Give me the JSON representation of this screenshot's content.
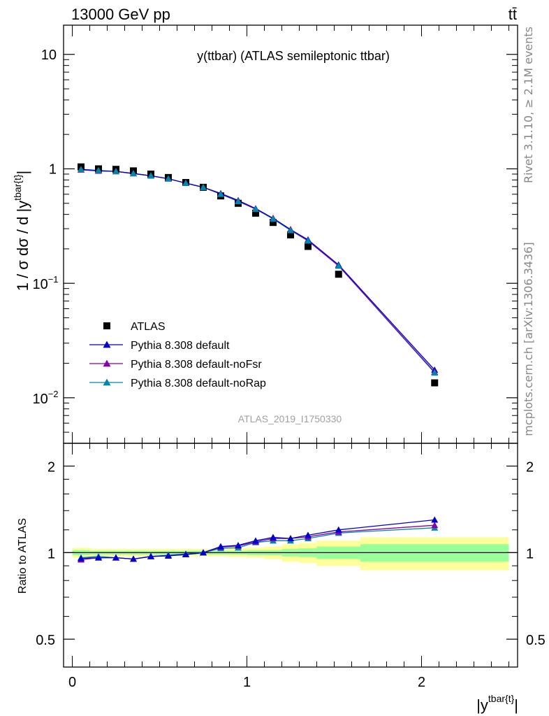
{
  "header": {
    "left": "13000 GeV pp",
    "right": "tt̄"
  },
  "side_labels": {
    "rivet": "Rivet 3.1.10, ≥ 2.1M events",
    "mcplots": "mcplots.cern.ch [arXiv:1306.3436]"
  },
  "watermark": "ATLAS_2019_I1750330",
  "colors": {
    "atlas": "#000000",
    "default": "#0000cc",
    "noFsr": "#8800aa",
    "noRap": "#0088aa",
    "band_inner": "#99ff99",
    "band_outer": "#ffff99"
  },
  "chart_data": [
    {
      "type": "scatter",
      "title": "y(ttbar) (ATLAS semileptonic ttbar)",
      "ylabel": "1 / σ dσ / d |y^{tbar{t}}|",
      "yscale": "log",
      "ylim": [
        0.004,
        18
      ],
      "xlim": [
        -0.05,
        2.55
      ],
      "ytick_labels": [
        "10^{-2}",
        "10^{-1}",
        "1",
        "10"
      ],
      "legend_position": "lower-left",
      "x": [
        0.05,
        0.15,
        0.25,
        0.35,
        0.45,
        0.55,
        0.65,
        0.75,
        0.85,
        0.95,
        1.05,
        1.15,
        1.25,
        1.35,
        1.525,
        2.075
      ],
      "series": [
        {
          "name": "ATLAS",
          "values": [
            1.04,
            1.0,
            0.99,
            0.96,
            0.9,
            0.84,
            0.76,
            0.69,
            0.58,
            0.5,
            0.41,
            0.34,
            0.265,
            0.21,
            0.12,
            0.0135
          ]
        },
        {
          "name": "Pythia 8.308 default",
          "values": [
            0.99,
            0.96,
            0.95,
            0.91,
            0.87,
            0.82,
            0.75,
            0.69,
            0.61,
            0.53,
            0.45,
            0.37,
            0.295,
            0.24,
            0.145,
            0.0175
          ]
        },
        {
          "name": "Pythia 8.308 default-noFsr",
          "values": [
            0.98,
            0.96,
            0.95,
            0.91,
            0.87,
            0.82,
            0.75,
            0.69,
            0.605,
            0.525,
            0.445,
            0.37,
            0.295,
            0.235,
            0.142,
            0.0168
          ]
        },
        {
          "name": "Pythia 8.308 default-noRap",
          "values": [
            0.99,
            0.97,
            0.95,
            0.91,
            0.87,
            0.82,
            0.75,
            0.69,
            0.6,
            0.52,
            0.445,
            0.365,
            0.29,
            0.235,
            0.142,
            0.0165
          ]
        }
      ]
    },
    {
      "type": "scatter",
      "ylabel": "Ratio to ATLAS",
      "xlabel": "|y^{tbar{t}}|",
      "yscale": "log",
      "ylim": [
        0.4,
        2.4
      ],
      "xlim": [
        -0.05,
        2.55
      ],
      "ytick_labels": [
        "0.5",
        "1",
        "2"
      ],
      "xtick_labels": [
        "0",
        "1",
        "2"
      ],
      "band_edges": [
        0,
        0.1,
        0.2,
        0.3,
        0.4,
        0.5,
        0.6,
        0.7,
        0.8,
        0.9,
        1.0,
        1.1,
        1.2,
        1.3,
        1.4,
        1.65,
        2.5
      ],
      "band_inner": [
        0.02,
        0.015,
        0.015,
        0.015,
        0.015,
        0.015,
        0.015,
        0.015,
        0.015,
        0.015,
        0.02,
        0.02,
        0.03,
        0.035,
        0.05,
        0.07
      ],
      "band_outer": [
        0.04,
        0.03,
        0.03,
        0.03,
        0.03,
        0.03,
        0.03,
        0.03,
        0.03,
        0.035,
        0.04,
        0.05,
        0.07,
        0.08,
        0.1,
        0.13
      ],
      "x": [
        0.05,
        0.15,
        0.25,
        0.35,
        0.45,
        0.55,
        0.65,
        0.75,
        0.85,
        0.95,
        1.05,
        1.15,
        1.25,
        1.35,
        1.525,
        2.075
      ],
      "series": [
        {
          "name": "Pythia 8.308 default",
          "values": [
            0.955,
            0.96,
            0.96,
            0.95,
            0.97,
            0.975,
            0.985,
            1.0,
            1.05,
            1.06,
            1.1,
            1.13,
            1.12,
            1.15,
            1.2,
            1.3
          ]
        },
        {
          "name": "Pythia 8.308 default-noFsr",
          "values": [
            0.945,
            0.96,
            0.96,
            0.95,
            0.97,
            0.975,
            0.985,
            1.0,
            1.045,
            1.055,
            1.09,
            1.12,
            1.12,
            1.135,
            1.18,
            1.245
          ]
        },
        {
          "name": "Pythia 8.308 default-noRap",
          "values": [
            0.96,
            0.97,
            0.96,
            0.95,
            0.97,
            0.98,
            0.99,
            1.0,
            1.035,
            1.04,
            1.085,
            1.1,
            1.1,
            1.12,
            1.17,
            1.22
          ]
        }
      ]
    }
  ]
}
